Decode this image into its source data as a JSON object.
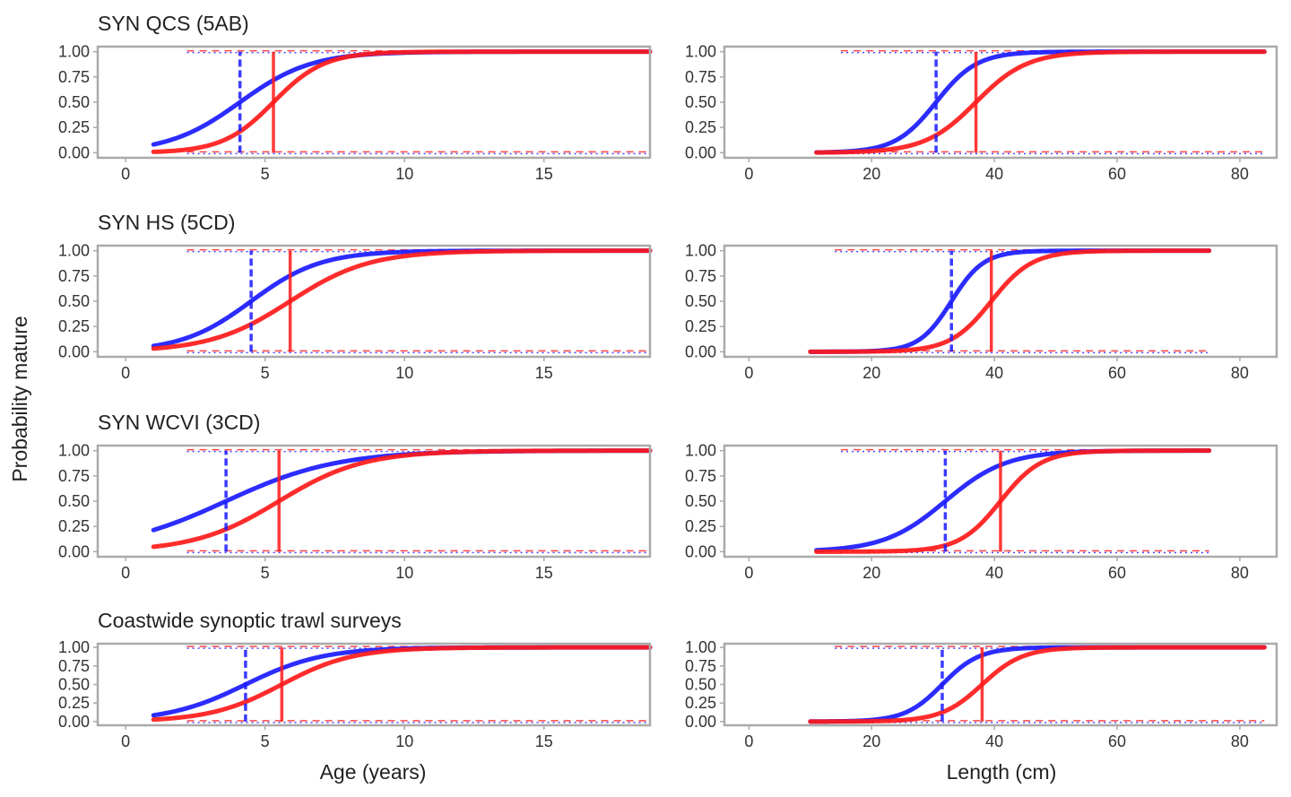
{
  "figure": {
    "ylabel": "Probability mature",
    "xlabel_age": "Age (years)",
    "xlabel_length": "Length (cm)",
    "colors": {
      "female": "#ff1a1a",
      "male": "#1a1aff",
      "frame": "#aaaaaa",
      "text": "#333333"
    },
    "y_tick_labels": [
      "0.00",
      "0.25",
      "0.50",
      "0.75",
      "1.00"
    ],
    "age_tick_labels": [
      "0",
      "5",
      "10",
      "15"
    ],
    "length_tick_labels": [
      "0",
      "20",
      "40",
      "60",
      "80"
    ]
  },
  "chart_data": [
    {
      "type": "line",
      "row": 0,
      "panel": "age",
      "title": "SYN QCS (5AB)",
      "xlim": [
        -1,
        18.8
      ],
      "ylim": [
        -0.05,
        1.05
      ],
      "x_ticks": [
        0,
        5,
        10,
        15
      ],
      "y_ticks": [
        0,
        0.25,
        0.5,
        0.75,
        1
      ],
      "x_range": [
        1,
        18.8
      ],
      "series": [
        {
          "sex": "female",
          "x50": 5.3,
          "k": 1.1,
          "style": "solid"
        },
        {
          "sex": "male",
          "x50": 4.1,
          "k": 0.78,
          "style": "dashed"
        }
      ]
    },
    {
      "type": "line",
      "row": 0,
      "panel": "length",
      "title": "",
      "xlim": [
        -4,
        86
      ],
      "ylim": [
        -0.05,
        1.05
      ],
      "x_ticks": [
        0,
        20,
        40,
        60,
        80
      ],
      "y_ticks": [
        0,
        0.25,
        0.5,
        0.75,
        1
      ],
      "x_range": [
        11,
        84
      ],
      "series": [
        {
          "sex": "female",
          "x50": 37,
          "k": 0.24,
          "style": "solid"
        },
        {
          "sex": "male",
          "x50": 30.5,
          "k": 0.3,
          "style": "dashed"
        }
      ]
    },
    {
      "type": "line",
      "row": 1,
      "panel": "age",
      "title": "SYN HS (5CD)",
      "xlim": [
        -1,
        18.8
      ],
      "ylim": [
        -0.05,
        1.05
      ],
      "x_ticks": [
        0,
        5,
        10,
        15
      ],
      "y_ticks": [
        0,
        0.25,
        0.5,
        0.75,
        1
      ],
      "x_range": [
        1,
        18.8
      ],
      "series": [
        {
          "sex": "female",
          "x50": 5.9,
          "k": 0.7,
          "style": "solid"
        },
        {
          "sex": "male",
          "x50": 4.5,
          "k": 0.8,
          "style": "dashed"
        }
      ]
    },
    {
      "type": "line",
      "row": 1,
      "panel": "length",
      "title": "",
      "xlim": [
        -4,
        86
      ],
      "ylim": [
        -0.05,
        1.05
      ],
      "x_ticks": [
        0,
        20,
        40,
        60,
        80
      ],
      "y_ticks": [
        0,
        0.25,
        0.5,
        0.75,
        1
      ],
      "x_range": [
        10,
        75
      ],
      "series": [
        {
          "sex": "female",
          "x50": 39.5,
          "k": 0.3,
          "style": "solid"
        },
        {
          "sex": "male",
          "x50": 33,
          "k": 0.38,
          "style": "dashed"
        }
      ]
    },
    {
      "type": "line",
      "row": 2,
      "panel": "age",
      "title": "SYN WCVI (3CD)",
      "xlim": [
        -1,
        18.8
      ],
      "ylim": [
        -0.05,
        1.05
      ],
      "x_ticks": [
        0,
        5,
        10,
        15
      ],
      "y_ticks": [
        0,
        0.25,
        0.5,
        0.75,
        1
      ],
      "x_range": [
        1,
        18.8
      ],
      "series": [
        {
          "sex": "female",
          "x50": 5.5,
          "k": 0.66,
          "style": "solid"
        },
        {
          "sex": "male",
          "x50": 3.6,
          "k": 0.5,
          "style": "dashed"
        }
      ]
    },
    {
      "type": "line",
      "row": 2,
      "panel": "length",
      "title": "",
      "xlim": [
        -4,
        86
      ],
      "ylim": [
        -0.05,
        1.05
      ],
      "x_ticks": [
        0,
        20,
        40,
        60,
        80
      ],
      "y_ticks": [
        0,
        0.25,
        0.5,
        0.75,
        1
      ],
      "x_range": [
        11,
        75
      ],
      "series": [
        {
          "sex": "female",
          "x50": 41,
          "k": 0.3,
          "style": "solid"
        },
        {
          "sex": "male",
          "x50": 32,
          "k": 0.2,
          "style": "dashed"
        }
      ]
    },
    {
      "type": "line",
      "row": 3,
      "panel": "age",
      "title": "Coastwide synoptic trawl surveys",
      "xlim": [
        -1,
        18.8
      ],
      "ylim": [
        -0.05,
        1.05
      ],
      "x_ticks": [
        0,
        5,
        10,
        15
      ],
      "y_ticks": [
        0,
        0.25,
        0.5,
        0.75,
        1
      ],
      "x_range": [
        1,
        18.8
      ],
      "series": [
        {
          "sex": "female",
          "x50": 5.6,
          "k": 0.78,
          "style": "solid"
        },
        {
          "sex": "male",
          "x50": 4.3,
          "k": 0.72,
          "style": "dashed"
        }
      ]
    },
    {
      "type": "line",
      "row": 3,
      "panel": "length",
      "title": "",
      "xlim": [
        -4,
        86
      ],
      "ylim": [
        -0.05,
        1.05
      ],
      "x_ticks": [
        0,
        20,
        40,
        60,
        80
      ],
      "y_ticks": [
        0,
        0.25,
        0.5,
        0.75,
        1
      ],
      "x_range": [
        10,
        84
      ],
      "series": [
        {
          "sex": "female",
          "x50": 38,
          "k": 0.3,
          "style": "solid"
        },
        {
          "sex": "male",
          "x50": 31.5,
          "k": 0.33,
          "style": "dashed"
        }
      ]
    }
  ]
}
